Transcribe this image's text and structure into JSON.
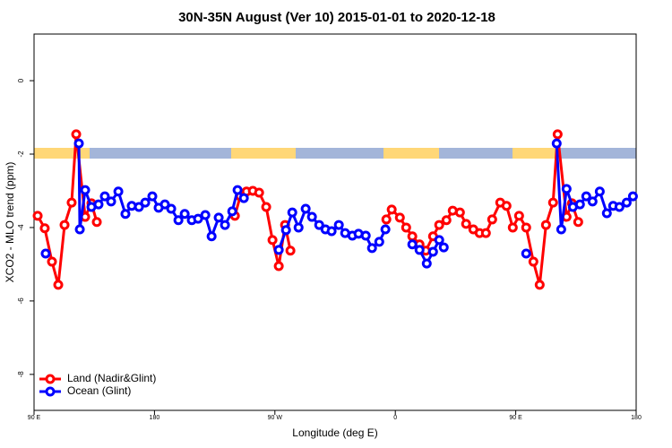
{
  "chart_data": {
    "type": "line",
    "title": "30N-35N August (Ver 10)   2015-01-01 to 2020-12-18",
    "x_label": "Longitude (deg E)",
    "y_label": "XCO2 - MLO trend (ppm)",
    "xlim": [
      90,
      540
    ],
    "xticks": [
      {
        "value": 90,
        "label": "90 E"
      },
      {
        "value": 180,
        "label": "180"
      },
      {
        "value": 270,
        "label": "90 W"
      },
      {
        "value": 360,
        "label": "0"
      },
      {
        "value": 450,
        "label": "90 E"
      },
      {
        "value": 540,
        "label": "180"
      }
    ],
    "ylim": [
      -8.98,
      1.27
    ],
    "yticks": [
      0,
      -2,
      -4,
      -6,
      -8
    ],
    "legend": "bottom-left",
    "series": [
      {
        "name": "Land (Nadir&Glint)",
        "color": "#ff0000",
        "x": [
          92.7,
          98.0,
          103.4,
          108.1,
          112.8,
          118.1,
          121.5,
          128.2,
          132.9,
          136.9,
          null,
          240.1,
          244.1,
          248.8,
          253.5,
          258.2,
          263.5,
          268.2,
          272.9,
          277.6,
          281.6,
          null,
          353.3,
          357.3,
          363.4,
          368.1,
          372.7,
          378.1,
          382.8,
          388.2,
          392.8,
          398.2,
          402.9,
          408.3,
          412.9,
          418.3,
          423.0,
          427.7,
          432.4,
          438.4,
          443.1,
          447.8,
          452.5,
          457.8,
          463.2,
          467.9,
          472.6,
          477.9,
          481.3,
          488.0,
          492.0,
          496.7
        ],
        "values": [
          -3.68,
          -4.02,
          -4.93,
          -5.56,
          -3.93,
          -3.32,
          -1.46,
          -3.71,
          -3.34,
          -3.85,
          null,
          -3.68,
          -3.15,
          -3.02,
          -3.0,
          -3.05,
          -3.44,
          -4.34,
          -5.05,
          -3.93,
          -4.63,
          null,
          -3.78,
          -3.51,
          -3.73,
          -4.0,
          -4.24,
          -4.46,
          -4.63,
          -4.24,
          -3.93,
          -3.8,
          -3.54,
          -3.59,
          -3.9,
          -4.05,
          -4.15,
          -4.15,
          -3.78,
          -3.32,
          -3.41,
          -4.0,
          -3.68,
          -4.0,
          -4.93,
          -5.56,
          -3.93,
          -3.32,
          -1.46,
          -3.71,
          -3.34,
          -3.85
        ]
      },
      {
        "name": "Ocean (Glint)",
        "color": "#0000ff",
        "x": [
          98.7,
          null,
          123.5,
          124.2,
          128.2,
          132.9,
          138.2,
          142.9,
          147.6,
          153.0,
          158.3,
          163.0,
          168.4,
          173.1,
          178.4,
          183.1,
          187.8,
          192.5,
          197.9,
          202.6,
          207.9,
          212.6,
          218.0,
          222.7,
          228.0,
          232.7,
          238.1,
          242.1,
          246.8,
          null,
          272.9,
          278.3,
          283.0,
          287.7,
          293.0,
          297.7,
          303.1,
          307.8,
          312.4,
          317.8,
          322.5,
          327.9,
          332.5,
          337.9,
          342.6,
          348.0,
          352.6,
          null,
          372.7,
          378.1,
          383.5,
          388.2,
          392.8,
          396.2,
          null,
          457.8,
          null,
          480.6,
          484.0,
          488.0,
          492.7,
          498.0,
          502.7,
          507.4,
          512.8,
          518.1,
          522.8,
          527.5,
          532.9,
          537.6
        ],
        "values": [
          -4.71,
          null,
          -1.71,
          -4.05,
          -2.98,
          -3.44,
          -3.37,
          -3.15,
          -3.29,
          -3.02,
          -3.63,
          -3.41,
          -3.44,
          -3.32,
          -3.15,
          -3.46,
          -3.37,
          -3.49,
          -3.8,
          -3.63,
          -3.8,
          -3.76,
          -3.66,
          -4.24,
          -3.73,
          -3.93,
          -3.56,
          -2.98,
          -3.2,
          null,
          -4.61,
          -4.07,
          -3.59,
          -4.0,
          -3.49,
          -3.71,
          -3.93,
          -4.05,
          -4.1,
          -3.93,
          -4.15,
          -4.22,
          -4.17,
          -4.22,
          -4.56,
          -4.39,
          -4.05,
          null,
          -4.46,
          -4.61,
          -4.98,
          -4.66,
          -4.34,
          -4.54,
          null,
          -4.71,
          null,
          -1.71,
          -4.05,
          -2.95,
          -3.44,
          -3.37,
          -3.15,
          -3.29,
          -3.02,
          -3.61,
          -3.41,
          -3.44,
          -3.32,
          -3.15
        ]
      }
    ]
  }
}
